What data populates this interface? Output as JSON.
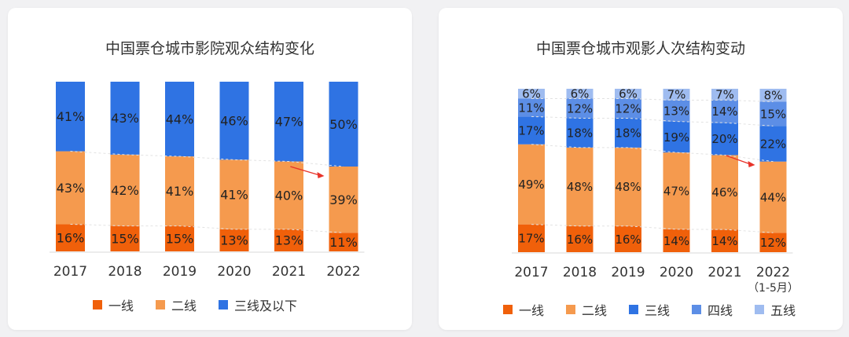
{
  "colors": {
    "tier1": "#f0600a",
    "tier2": "#f59a4e",
    "tier3": "#2f73e3",
    "tier3below": "#2f73e3",
    "tier4": "#5c8ee6",
    "tier5": "#9fbcf0"
  },
  "chart_data": [
    {
      "type": "bar",
      "stacked": true,
      "percent": true,
      "title": "中国票仓城市影院观众结构变化",
      "categories": [
        "2017",
        "2018",
        "2019",
        "2020",
        "2021",
        "2022"
      ],
      "series": [
        {
          "name": "一线",
          "values": [
            16,
            15,
            15,
            13,
            13,
            11
          ]
        },
        {
          "name": "二线",
          "values": [
            43,
            42,
            41,
            41,
            40,
            39
          ]
        },
        {
          "name": "三线及以下",
          "values": [
            41,
            43,
            44,
            46,
            47,
            50
          ]
        }
      ],
      "legend": "bottom",
      "grid": false
    },
    {
      "type": "bar",
      "stacked": true,
      "percent": true,
      "title": "中国票仓城市观影人次结构变动",
      "categories": [
        "2017",
        "2018",
        "2019",
        "2020",
        "2021",
        "2022"
      ],
      "category_sublabels": [
        "",
        "",
        "",
        "",
        "",
        "（1-5月）"
      ],
      "series": [
        {
          "name": "一线",
          "values": [
            17,
            16,
            16,
            14,
            14,
            12
          ]
        },
        {
          "name": "二线",
          "values": [
            49,
            48,
            48,
            47,
            46,
            44
          ]
        },
        {
          "name": "三线",
          "values": [
            17,
            18,
            18,
            19,
            20,
            22
          ]
        },
        {
          "name": "四线",
          "values": [
            11,
            12,
            12,
            13,
            14,
            15
          ]
        },
        {
          "name": "五线",
          "values": [
            6,
            6,
            6,
            7,
            7,
            8
          ]
        }
      ],
      "legend": "bottom",
      "grid": false
    }
  ]
}
